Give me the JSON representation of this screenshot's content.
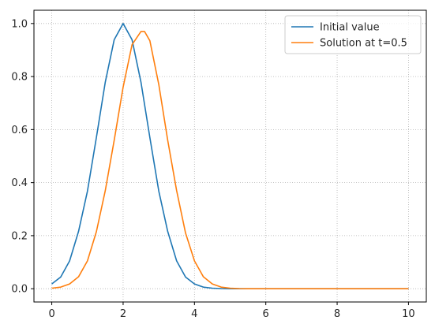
{
  "chart_data": {
    "type": "line",
    "title": "",
    "xlabel": "",
    "ylabel": "",
    "xlim": [
      -0.5,
      10.5
    ],
    "ylim": [
      -0.05,
      1.05
    ],
    "xticks": [
      0,
      2,
      4,
      6,
      8,
      10
    ],
    "yticks": [
      0.0,
      0.2,
      0.4,
      0.6,
      0.8,
      1.0
    ],
    "xtick_labels": [
      "0",
      "2",
      "4",
      "6",
      "8",
      "10"
    ],
    "ytick_labels": [
      "0.0",
      "0.2",
      "0.4",
      "0.6",
      "0.8",
      "1.0"
    ],
    "grid": true,
    "legend_position": "upper right",
    "series": [
      {
        "name": "Initial value",
        "color": "#1f77b4",
        "x": [
          0,
          0.25,
          0.5,
          0.75,
          1.0,
          1.25,
          1.5,
          1.75,
          2.0,
          2.25,
          2.5,
          2.75,
          3.0,
          3.25,
          3.5,
          3.75,
          4.0,
          4.25,
          4.5,
          4.75,
          5.0,
          5.5,
          6.0,
          7.0,
          8.0,
          9.0,
          10.0
        ],
        "y": [
          0.018,
          0.044,
          0.105,
          0.216,
          0.368,
          0.57,
          0.779,
          0.939,
          1.0,
          0.939,
          0.779,
          0.57,
          0.368,
          0.216,
          0.105,
          0.044,
          0.018,
          0.006,
          0.002,
          0.0005,
          0.0,
          0.0,
          0.0,
          0.0,
          0.0,
          0.0,
          0.0
        ]
      },
      {
        "name": "Solution at t=0.5",
        "color": "#ff7f0e",
        "x": [
          0,
          0.25,
          0.5,
          0.75,
          1.0,
          1.25,
          1.5,
          1.75,
          2.0,
          2.25,
          2.5,
          2.6,
          2.75,
          3.0,
          3.25,
          3.5,
          3.75,
          4.0,
          4.25,
          4.5,
          4.75,
          5.0,
          5.25,
          5.5,
          6.0,
          7.0,
          8.0,
          9.0,
          10.0
        ],
        "y": [
          0.002,
          0.006,
          0.018,
          0.045,
          0.105,
          0.215,
          0.37,
          0.56,
          0.76,
          0.92,
          0.97,
          0.97,
          0.935,
          0.77,
          0.56,
          0.37,
          0.21,
          0.105,
          0.045,
          0.018,
          0.006,
          0.002,
          0.0005,
          0.0,
          0.0,
          0.0,
          0.0,
          0.0,
          0.0
        ]
      }
    ]
  }
}
